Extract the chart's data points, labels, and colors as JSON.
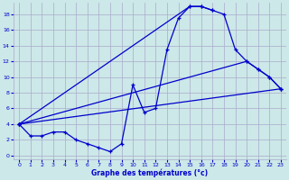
{
  "title": "Graphe des températures (°c)",
  "background_color": "#cce8e8",
  "grid_color": "#aaaacc",
  "line_color": "#0000cc",
  "xlim": [
    -0.5,
    23.5
  ],
  "ylim": [
    -0.5,
    19.5
  ],
  "xticks": [
    0,
    1,
    2,
    3,
    4,
    5,
    6,
    7,
    8,
    9,
    10,
    11,
    12,
    13,
    14,
    15,
    16,
    17,
    18,
    19,
    20,
    21,
    22,
    23
  ],
  "yticks": [
    0,
    2,
    4,
    6,
    8,
    10,
    12,
    14,
    16,
    18
  ],
  "series": [
    {
      "x": [
        0,
        1,
        2,
        3,
        4,
        5,
        6,
        7,
        8,
        9,
        10,
        11,
        12,
        13,
        14,
        15,
        16,
        17
      ],
      "y": [
        4,
        2.5,
        2.5,
        3,
        3,
        2,
        1.5,
        1,
        0.5,
        1.5,
        9,
        5.5,
        6,
        13.5,
        17.5,
        19,
        19,
        18.5
      ]
    },
    {
      "x": [
        0,
        15,
        16,
        17,
        18,
        19,
        20,
        21,
        22,
        23
      ],
      "y": [
        4,
        19,
        19,
        18.5,
        18,
        13.5,
        12,
        11,
        10,
        8.5
      ]
    },
    {
      "x": [
        0,
        23
      ],
      "y": [
        4,
        8.5
      ]
    },
    {
      "x": [
        0,
        20,
        21,
        22,
        23
      ],
      "y": [
        4,
        12,
        11,
        10,
        8.5
      ]
    }
  ]
}
